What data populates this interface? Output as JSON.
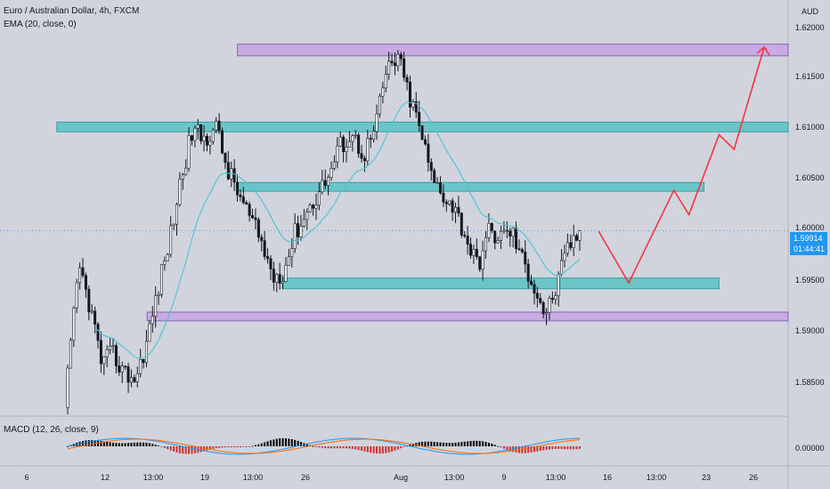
{
  "header": {
    "title": "Euro / Australian Dollar, 4h, FXCM",
    "indicator": "EMA (20, close, 0)",
    "macd": "MACD (12, 26, close, 9)"
  },
  "price_axis": {
    "unit": "AUD",
    "ticks": [
      "1.62000",
      "1.61500",
      "1.61000",
      "1.60500",
      "1.60000",
      "1.59500",
      "1.59000",
      "1.58500",
      "0.00000"
    ]
  },
  "current": {
    "price": "1.59914",
    "countdown": "01:44:41"
  },
  "time_axis": {
    "ticks": [
      "6",
      "12",
      "13:00",
      "19",
      "13:00",
      "26",
      "Aug",
      "13:00",
      "9",
      "13:00",
      "16",
      "13:00",
      "23",
      "26"
    ]
  },
  "colors": {
    "background": "#d1d4dc",
    "candle": "#131722",
    "ema": "#4dc4d4",
    "zone_teal": "#5fc4c4",
    "zone_purple": "#c9a6e3",
    "projection": "#f23645",
    "macd_line": "#2196f3",
    "signal_line": "#ff6d00",
    "hist_pos": "#000000",
    "hist_neg": "#d32f2f"
  },
  "chart_data": {
    "type": "candlestick",
    "symbol": "EURAUD",
    "timeframe": "4h",
    "y_range": [
      1.5818,
      1.6205
    ],
    "last_price": 1.59914,
    "path": [
      1.5842,
      1.5955,
      1.5912,
      1.5855,
      1.5865,
      1.5845,
      1.584,
      1.588,
      1.5935,
      1.5985,
      1.6048,
      1.6095,
      1.6085,
      1.61,
      1.6055,
      1.603,
      1.6005,
      1.598,
      1.5945,
      1.595,
      1.599,
      1.601,
      1.603,
      1.605,
      1.608,
      1.609,
      1.607,
      1.6095,
      1.6155,
      1.617,
      1.613,
      1.6095,
      1.6045,
      1.603,
      1.6015,
      1.5985,
      1.5955,
      1.599,
      1.5985,
      1.5992,
      1.596,
      1.5935,
      1.5905,
      1.5935,
      1.5975,
      1.5991
    ],
    "zones": [
      {
        "color": "purple",
        "x_start": "Jul 20",
        "x_end": "Aug 25",
        "price_low": 1.6171,
        "price_high": 1.6183
      },
      {
        "color": "teal",
        "x_start": "Jul 8",
        "x_end": "Aug 27",
        "price_low": 1.6093,
        "price_high": 1.6103
      },
      {
        "color": "teal",
        "x_start": "Jul 20",
        "x_end": "Aug 19",
        "price_low": 1.6032,
        "price_high": 1.6041
      },
      {
        "color": "teal",
        "x_start": "Jul 23",
        "x_end": "Aug 20",
        "price_low": 1.5932,
        "price_high": 1.5943
      },
      {
        "color": "purple",
        "x_start": "Jul 14",
        "x_end": "Aug 27",
        "price_low": 1.5899,
        "price_high": 1.5908
      }
    ],
    "projection": [
      {
        "x": "Aug 12",
        "y": 1.5991
      },
      {
        "x": "Aug 14",
        "y": 1.5938
      },
      {
        "x": "Aug 17",
        "y": 1.6033
      },
      {
        "x": "Aug 18",
        "y": 1.6008
      },
      {
        "x": "Aug 20",
        "y": 1.609
      },
      {
        "x": "Aug 21",
        "y": 1.6075
      },
      {
        "x": "Aug 23",
        "y": 1.618
      }
    ],
    "macd": {
      "params": "12, 26, close, 9",
      "zero_label": "0.00000"
    }
  }
}
